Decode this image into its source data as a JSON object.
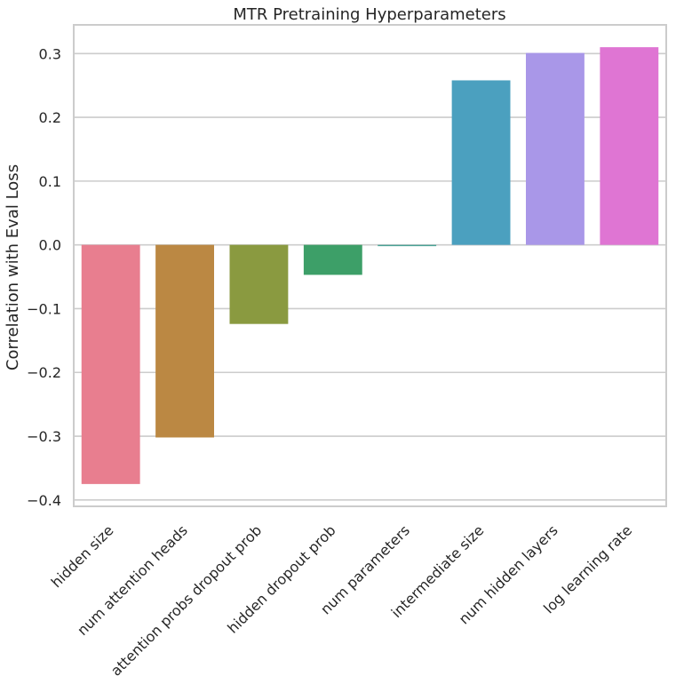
{
  "chart_data": {
    "type": "bar",
    "title": "MTR Pretraining Hyperparameters",
    "xlabel": "",
    "ylabel": "Correlation with Eval Loss",
    "categories": [
      "hidden size",
      "num attention heads",
      "attention probs dropout prob",
      "hidden dropout prob",
      "num parameters",
      "intermediate size",
      "num hidden layers",
      "log learning rate"
    ],
    "values": [
      -0.375,
      -0.302,
      -0.124,
      -0.047,
      -0.002,
      0.258,
      0.301,
      0.31
    ],
    "colors": [
      "#e87e8f",
      "#bb8843",
      "#8a9a40",
      "#3d9f68",
      "#4aa395",
      "#4ba0bf",
      "#a997e8",
      "#df75d3"
    ],
    "ylim": [
      -0.41,
      0.345
    ],
    "yticks": [
      -0.4,
      -0.3,
      -0.2,
      -0.1,
      0.0,
      0.1,
      0.2,
      0.3
    ],
    "ytick_labels": [
      "−0.4",
      "−0.3",
      "−0.2",
      "−0.1",
      "0.0",
      "0.1",
      "0.2",
      "0.3"
    ],
    "grid": "horizontal",
    "style": {
      "grid_color": "#cccccc",
      "frame_color": "#cccccc",
      "text_color": "#262626"
    }
  }
}
